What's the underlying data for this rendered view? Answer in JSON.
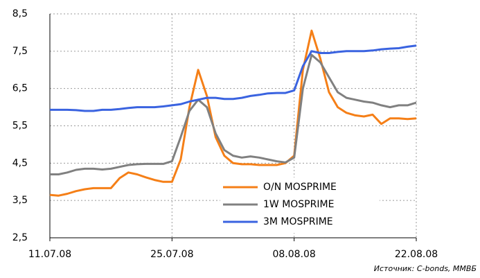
{
  "chart_data": {
    "type": "line",
    "x": [
      "2008-07-11",
      "2008-07-12",
      "2008-07-13",
      "2008-07-14",
      "2008-07-15",
      "2008-07-16",
      "2008-07-17",
      "2008-07-18",
      "2008-07-19",
      "2008-07-20",
      "2008-07-21",
      "2008-07-22",
      "2008-07-23",
      "2008-07-24",
      "2008-07-25",
      "2008-07-26",
      "2008-07-27",
      "2008-07-28",
      "2008-07-29",
      "2008-07-30",
      "2008-07-31",
      "2008-08-01",
      "2008-08-02",
      "2008-08-03",
      "2008-08-04",
      "2008-08-05",
      "2008-08-06",
      "2008-08-07",
      "2008-08-08",
      "2008-08-09",
      "2008-08-10",
      "2008-08-11",
      "2008-08-12",
      "2008-08-13",
      "2008-08-14",
      "2008-08-15",
      "2008-08-16",
      "2008-08-17",
      "2008-08-18",
      "2008-08-19",
      "2008-08-20",
      "2008-08-21",
      "2008-08-22"
    ],
    "series": [
      {
        "name": "O/N MOSPRIME",
        "color": "#f57f17",
        "values": [
          3.65,
          3.63,
          3.68,
          3.75,
          3.8,
          3.83,
          3.83,
          3.83,
          4.1,
          4.25,
          4.2,
          4.12,
          4.05,
          4.0,
          4.0,
          4.6,
          6.0,
          7.0,
          6.3,
          5.2,
          4.7,
          4.5,
          4.47,
          4.47,
          4.45,
          4.45,
          4.45,
          4.5,
          4.7,
          7.0,
          8.05,
          7.3,
          6.4,
          6.0,
          5.85,
          5.78,
          5.75,
          5.8,
          5.55,
          5.7,
          5.7,
          5.68,
          5.7
        ]
      },
      {
        "name": "1W MOSPRIME",
        "color": "#808080",
        "values": [
          4.2,
          4.2,
          4.25,
          4.32,
          4.35,
          4.35,
          4.33,
          4.35,
          4.4,
          4.45,
          4.47,
          4.48,
          4.48,
          4.48,
          4.55,
          5.2,
          5.9,
          6.2,
          6.0,
          5.3,
          4.85,
          4.7,
          4.65,
          4.68,
          4.65,
          4.6,
          4.55,
          4.52,
          4.65,
          6.5,
          7.4,
          7.2,
          6.8,
          6.4,
          6.25,
          6.2,
          6.15,
          6.12,
          6.05,
          6.0,
          6.05,
          6.05,
          6.12
        ]
      },
      {
        "name": "3M MOSPRIME",
        "color": "#3a63e0",
        "values": [
          5.93,
          5.93,
          5.93,
          5.92,
          5.9,
          5.9,
          5.93,
          5.93,
          5.95,
          5.98,
          6.0,
          6.0,
          6.0,
          6.02,
          6.05,
          6.08,
          6.15,
          6.2,
          6.25,
          6.25,
          6.22,
          6.22,
          6.25,
          6.3,
          6.33,
          6.37,
          6.38,
          6.38,
          6.45,
          7.1,
          7.5,
          7.45,
          7.45,
          7.48,
          7.5,
          7.5,
          7.5,
          7.52,
          7.55,
          7.57,
          7.58,
          7.62,
          7.65
        ]
      }
    ],
    "xlim": [
      "2008-07-11",
      "2008-08-22"
    ],
    "xticks": [
      {
        "value": "2008-07-11",
        "label": "11.07.08"
      },
      {
        "value": "2008-07-25",
        "label": "25.07.08"
      },
      {
        "value": "2008-08-08",
        "label": "08.08.08"
      },
      {
        "value": "2008-08-22",
        "label": "22.08.08"
      }
    ],
    "ylim": [
      2.5,
      8.5
    ],
    "yticks": [
      {
        "value": 2.5,
        "label": "2,5"
      },
      {
        "value": 3.5,
        "label": "3,5"
      },
      {
        "value": 4.5,
        "label": "4,5"
      },
      {
        "value": 5.5,
        "label": "5,5"
      },
      {
        "value": 6.5,
        "label": "6,5"
      },
      {
        "value": 7.5,
        "label": "7,5"
      },
      {
        "value": 8.5,
        "label": "8,5"
      }
    ],
    "grid": true,
    "annotation": "Источник: C-bonds, ММВБ"
  }
}
